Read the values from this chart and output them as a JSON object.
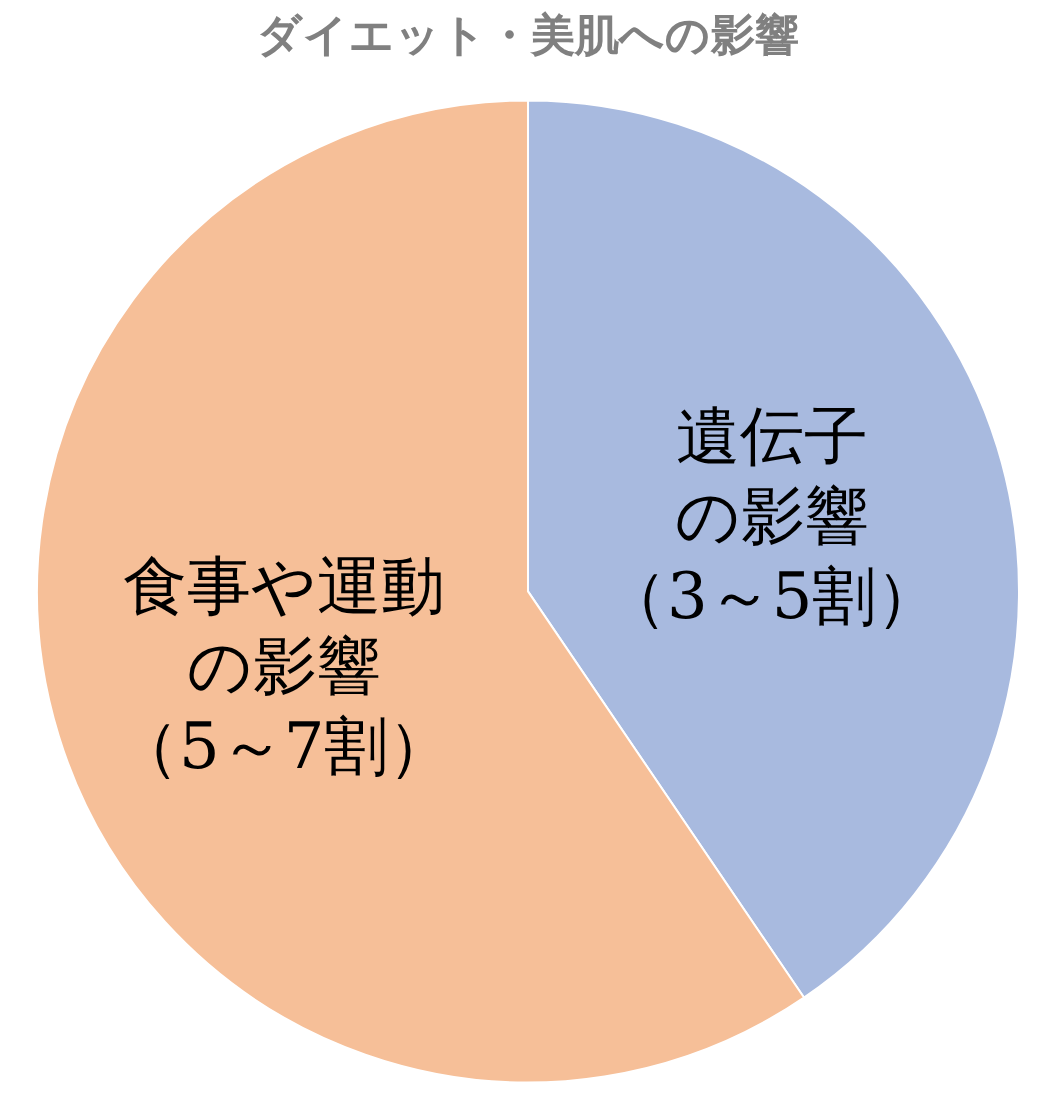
{
  "chart_data": {
    "type": "pie",
    "title": "ダイエット・美肌への影響",
    "categories": [
      "遺伝子の影響（3～5割）",
      "食事や運動の影響（5～7割）"
    ],
    "values": [
      40.5,
      59.5
    ],
    "colors": [
      "#a8badf",
      "#f6bf98"
    ],
    "legend": false
  }
}
